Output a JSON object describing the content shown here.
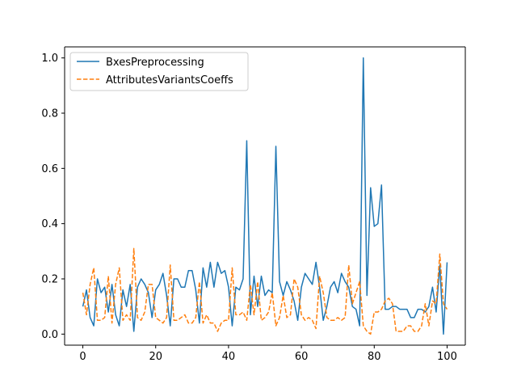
{
  "chart_data": {
    "type": "line",
    "title": "",
    "xlabel": "",
    "ylabel": "",
    "xlim": [
      -5,
      105
    ],
    "ylim": [
      -0.04,
      1.04
    ],
    "xticks": [
      0,
      20,
      40,
      60,
      80,
      100
    ],
    "yticks": [
      0.0,
      0.2,
      0.4,
      0.6,
      0.8,
      1.0
    ],
    "legend_position": "top-left",
    "grid": false,
    "series": [
      {
        "name": "BxesPreprocessing",
        "color": "#1f77b4",
        "style": "solid",
        "x": [
          0,
          1,
          2,
          3,
          4,
          5,
          6,
          7,
          8,
          9,
          10,
          11,
          12,
          13,
          14,
          15,
          16,
          17,
          18,
          19,
          20,
          21,
          22,
          23,
          24,
          25,
          26,
          27,
          28,
          29,
          30,
          31,
          32,
          33,
          34,
          35,
          36,
          37,
          38,
          39,
          40,
          41,
          42,
          43,
          44,
          45,
          46,
          47,
          48,
          49,
          50,
          51,
          52,
          53,
          54,
          55,
          56,
          57,
          58,
          59,
          60,
          61,
          62,
          63,
          64,
          65,
          66,
          67,
          68,
          69,
          70,
          71,
          72,
          73,
          74,
          75,
          76,
          77,
          78,
          79,
          80,
          81,
          82,
          83,
          84,
          85,
          86,
          87,
          88,
          89,
          90,
          91,
          92,
          93,
          94,
          95,
          96,
          97,
          98,
          99,
          100
        ],
        "values": [
          0.1,
          0.16,
          0.06,
          0.03,
          0.2,
          0.15,
          0.17,
          0.08,
          0.18,
          0.07,
          0.03,
          0.16,
          0.1,
          0.18,
          0.01,
          0.17,
          0.2,
          0.18,
          0.15,
          0.06,
          0.16,
          0.18,
          0.22,
          0.14,
          0.03,
          0.2,
          0.2,
          0.17,
          0.17,
          0.23,
          0.23,
          0.16,
          0.04,
          0.24,
          0.17,
          0.26,
          0.17,
          0.26,
          0.22,
          0.23,
          0.17,
          0.03,
          0.17,
          0.16,
          0.2,
          0.7,
          0.07,
          0.21,
          0.1,
          0.21,
          0.14,
          0.16,
          0.15,
          0.68,
          0.19,
          0.14,
          0.19,
          0.16,
          0.12,
          0.05,
          0.17,
          0.22,
          0.2,
          0.18,
          0.26,
          0.17,
          0.05,
          0.1,
          0.17,
          0.19,
          0.15,
          0.22,
          0.19,
          0.17,
          0.1,
          0.09,
          0.03,
          1.0,
          0.14,
          0.53,
          0.39,
          0.4,
          0.54,
          0.09,
          0.09,
          0.1,
          0.1,
          0.09,
          0.09,
          0.09,
          0.06,
          0.06,
          0.09,
          0.09,
          0.08,
          0.1,
          0.17,
          0.08,
          0.25,
          0.0,
          0.26
        ]
      },
      {
        "name": "AttributesVariantsCoeffs",
        "color": "#ff7f0e",
        "style": "dashed",
        "x": [
          0,
          1,
          2,
          3,
          4,
          5,
          6,
          7,
          8,
          9,
          10,
          11,
          12,
          13,
          14,
          15,
          16,
          17,
          18,
          19,
          20,
          21,
          22,
          23,
          24,
          25,
          26,
          27,
          28,
          29,
          30,
          31,
          32,
          33,
          34,
          35,
          36,
          37,
          38,
          39,
          40,
          41,
          42,
          43,
          44,
          45,
          46,
          47,
          48,
          49,
          50,
          51,
          52,
          53,
          54,
          55,
          56,
          57,
          58,
          59,
          60,
          61,
          62,
          63,
          64,
          65,
          66,
          67,
          68,
          69,
          70,
          71,
          72,
          73,
          74,
          75,
          76,
          77,
          78,
          79,
          80,
          81,
          82,
          83,
          84,
          85,
          86,
          87,
          88,
          89,
          90,
          91,
          92,
          93,
          94,
          95,
          96,
          97,
          98,
          99,
          100
        ],
        "values": [
          0.15,
          0.07,
          0.18,
          0.24,
          0.05,
          0.05,
          0.06,
          0.21,
          0.04,
          0.18,
          0.24,
          0.05,
          0.07,
          0.05,
          0.31,
          0.06,
          0.05,
          0.08,
          0.18,
          0.18,
          0.06,
          0.05,
          0.04,
          0.06,
          0.25,
          0.05,
          0.05,
          0.06,
          0.07,
          0.04,
          0.04,
          0.06,
          0.19,
          0.04,
          0.07,
          0.04,
          0.04,
          0.01,
          0.04,
          0.05,
          0.05,
          0.24,
          0.07,
          0.07,
          0.08,
          0.05,
          0.18,
          0.07,
          0.19,
          0.05,
          0.06,
          0.08,
          0.15,
          0.03,
          0.06,
          0.14,
          0.06,
          0.07,
          0.2,
          0.17,
          0.07,
          0.05,
          0.06,
          0.05,
          0.02,
          0.21,
          0.15,
          0.06,
          0.05,
          0.05,
          0.06,
          0.05,
          0.06,
          0.25,
          0.11,
          0.15,
          0.19,
          0.03,
          0.01,
          0.0,
          0.08,
          0.08,
          0.09,
          0.12,
          0.13,
          0.11,
          0.01,
          0.01,
          0.01,
          0.03,
          0.03,
          0.01,
          0.01,
          0.03,
          0.11,
          0.03,
          0.12,
          0.11,
          0.29,
          0.11,
          0.09
        ]
      }
    ]
  }
}
